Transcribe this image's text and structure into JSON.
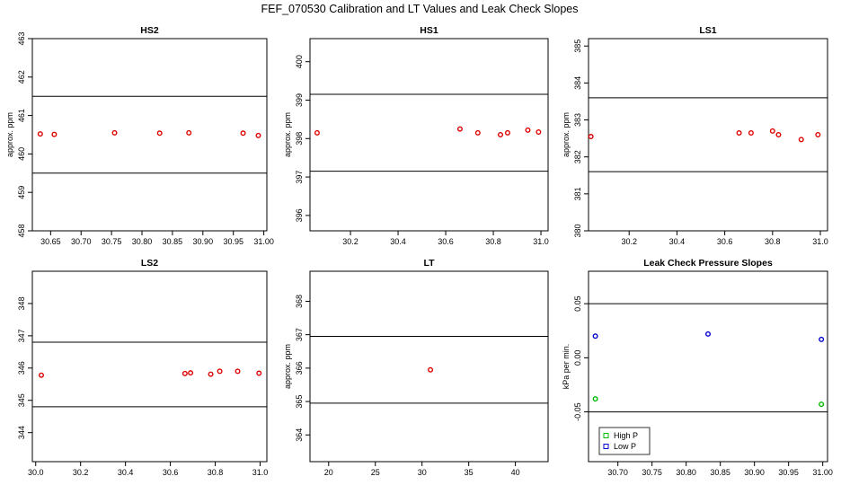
{
  "page_title": "FEF_070530  Calibration and LT Values and Leak Check Slopes",
  "chart_data": [
    {
      "type": "scatter",
      "title": "HS2",
      "ylabel": "approx. ppm",
      "xlim": [
        30.62,
        31.005
      ],
      "ylim": [
        458,
        463
      ],
      "xticks": [
        30.65,
        30.7,
        30.75,
        30.8,
        30.85,
        30.9,
        30.95,
        31.0
      ],
      "xtick_labels": [
        "30.65",
        "30.70",
        "30.75",
        "30.80",
        "30.85",
        "30.90",
        "30.95",
        "31.00"
      ],
      "yticks": [
        458,
        459,
        460,
        461,
        462,
        463
      ],
      "ytick_labels": [
        "458",
        "459",
        "460",
        "461",
        "462",
        "463"
      ],
      "hlines": [
        461.5,
        459.5
      ],
      "series": [
        {
          "color": "#dd0000",
          "x": [
            30.633,
            30.656,
            30.755,
            30.829,
            30.877,
            30.966,
            30.991
          ],
          "y": [
            460.52,
            460.51,
            460.55,
            460.54,
            460.55,
            460.54,
            460.48
          ]
        }
      ]
    },
    {
      "type": "scatter",
      "title": "HS1",
      "ylabel": "approx. ppm",
      "xlim": [
        30.03,
        31.03
      ],
      "ylim": [
        395.6,
        400.6
      ],
      "xticks": [
        30.2,
        30.4,
        30.6,
        30.8,
        31.0
      ],
      "xtick_labels": [
        "30.2",
        "30.4",
        "30.6",
        "30.8",
        "31.0"
      ],
      "yticks": [
        396,
        397,
        398,
        399,
        400
      ],
      "ytick_labels": [
        "396",
        "397",
        "398",
        "399",
        "400"
      ],
      "hlines": [
        399.15,
        397.15
      ],
      "series": [
        {
          "color": "#dd0000",
          "x": [
            30.06,
            30.66,
            30.735,
            30.83,
            30.86,
            30.945,
            30.99
          ],
          "y": [
            398.15,
            398.25,
            398.15,
            398.1,
            398.15,
            398.22,
            398.17
          ]
        }
      ]
    },
    {
      "type": "scatter",
      "title": "LS1",
      "ylabel": "approx. ppm",
      "xlim": [
        30.03,
        31.03
      ],
      "ylim": [
        380,
        385.2
      ],
      "xticks": [
        30.2,
        30.4,
        30.6,
        30.8,
        31.0
      ],
      "xtick_labels": [
        "30.2",
        "30.4",
        "30.6",
        "30.8",
        "31.0"
      ],
      "yticks": [
        380,
        381,
        382,
        383,
        384,
        385
      ],
      "ytick_labels": [
        "380",
        "381",
        "382",
        "383",
        "384",
        "385"
      ],
      "hlines": [
        383.6,
        381.6
      ],
      "series": [
        {
          "color": "#dd0000",
          "x": [
            30.04,
            30.66,
            30.71,
            30.8,
            30.825,
            30.92,
            30.99
          ],
          "y": [
            382.55,
            382.65,
            382.65,
            382.7,
            382.6,
            382.47,
            382.6
          ]
        }
      ]
    },
    {
      "type": "scatter",
      "title": "LS2",
      "ylabel": "",
      "xlim": [
        29.985,
        31.03
      ],
      "ylim": [
        343.1,
        349
      ],
      "xticks": [
        30.0,
        30.2,
        30.4,
        30.6,
        30.8,
        31.0
      ],
      "xtick_labels": [
        "30.0",
        "30.2",
        "30.4",
        "30.6",
        "30.8",
        "31.0"
      ],
      "yticks": [
        344,
        345,
        346,
        347,
        348
      ],
      "ytick_labels": [
        "344",
        "345",
        "346",
        "347",
        "348"
      ],
      "hlines": [
        346.8,
        344.8
      ],
      "series": [
        {
          "color": "#dd0000",
          "x": [
            30.025,
            30.665,
            30.69,
            30.78,
            30.82,
            30.9,
            30.995
          ],
          "y": [
            345.78,
            345.83,
            345.85,
            345.81,
            345.9,
            345.9,
            345.84
          ]
        }
      ]
    },
    {
      "type": "scatter",
      "title": "LT",
      "ylabel": "approx. ppm",
      "xlim": [
        18,
        43.5
      ],
      "ylim": [
        363.2,
        368.9
      ],
      "xticks": [
        20,
        25,
        30,
        35,
        40
      ],
      "xtick_labels": [
        "20",
        "25",
        "30",
        "35",
        "40"
      ],
      "yticks": [
        364,
        365,
        366,
        367,
        368
      ],
      "ytick_labels": [
        "364",
        "365",
        "366",
        "367",
        "368"
      ],
      "hlines": [
        366.95,
        364.95
      ],
      "series": [
        {
          "color": "#dd0000",
          "x": [
            30.9
          ],
          "y": [
            365.95
          ]
        }
      ]
    },
    {
      "type": "scatter",
      "title": "Leak Check Pressure Slopes",
      "ylabel": "kPa per min.",
      "xlim": [
        30.657,
        31.007
      ],
      "ylim": [
        -0.096,
        0.08
      ],
      "xticks": [
        30.7,
        30.75,
        30.8,
        30.85,
        30.9,
        30.95,
        31.0
      ],
      "xtick_labels": [
        "30.70",
        "30.75",
        "30.80",
        "30.85",
        "30.90",
        "30.95",
        "31.00"
      ],
      "yticks": [
        -0.05,
        0.0,
        0.05
      ],
      "ytick_labels": [
        "-0.05",
        "0.00",
        "0.05"
      ],
      "hlines": [
        0.05,
        -0.05
      ],
      "legend": {
        "placement": "bottom-left",
        "entries": [
          "High P",
          "Low P"
        ],
        "colors": [
          "#00bb00",
          "#0000cc"
        ]
      },
      "series": [
        {
          "name": "High P",
          "color": "#00bb00",
          "x": [
            30.667,
            30.998
          ],
          "y": [
            -0.038,
            -0.043
          ]
        },
        {
          "name": "Low P",
          "color": "#0000cc",
          "x": [
            30.667,
            30.832,
            30.998
          ],
          "y": [
            0.02,
            0.022,
            0.017
          ]
        }
      ]
    }
  ]
}
